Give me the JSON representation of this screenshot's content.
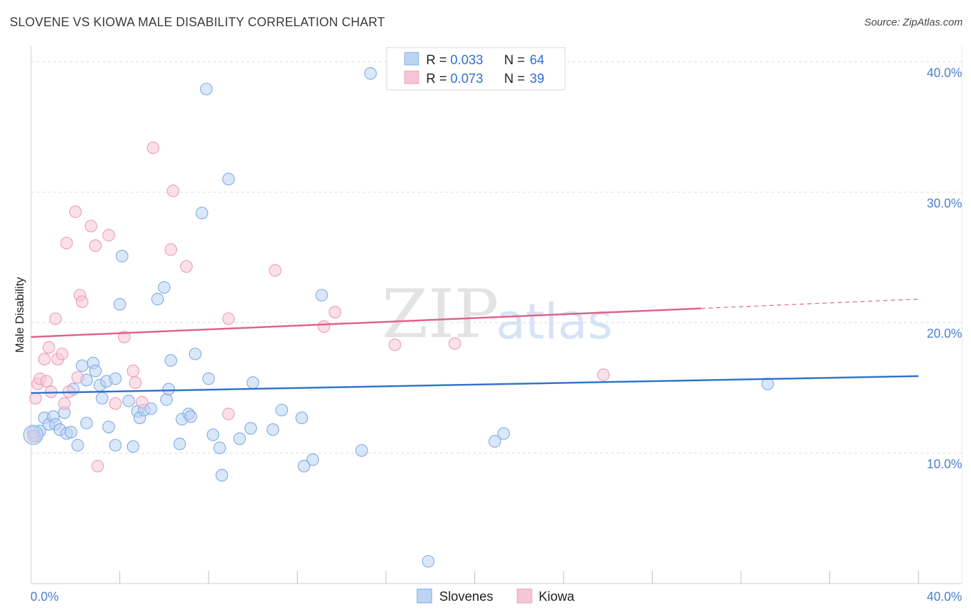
{
  "chart_data": {
    "type": "scatter",
    "title": "SLOVENE VS KIOWA MALE DISABILITY CORRELATION CHART",
    "source": "Source: ZipAtlas.com",
    "xlabel": "",
    "ylabel": "Male Disability",
    "xlim": [
      0,
      40
    ],
    "ylim": [
      0,
      40.6
    ],
    "x_tick_labels": [
      "0.0%",
      "40.0%"
    ],
    "y_ticks": [
      10,
      20,
      30,
      40
    ],
    "y_tick_labels": [
      "10.0%",
      "20.0%",
      "30.0%",
      "40.0%"
    ],
    "grid": true,
    "watermark": {
      "bold": "ZIP",
      "light": "atlas"
    },
    "legend": {
      "placement": "top-center",
      "entries": [
        {
          "series": "Slovenes",
          "r_label": "R =",
          "r_value": "0.033",
          "n_label": "N =",
          "n_value": "64"
        },
        {
          "series": "Kiowa",
          "r_label": "R =",
          "r_value": "0.073",
          "n_label": "N =",
          "n_value": "39"
        }
      ]
    },
    "series": [
      {
        "name": "Slovenes",
        "color": "#7aaae6",
        "fill": "#bcd4f3",
        "line_color": "#2f73c9",
        "trend": {
          "x0": 0,
          "y0": 14.6,
          "x1": 40,
          "y1": 15.9,
          "solid_until": 40
        },
        "points": [
          [
            0.2,
            11.3
          ],
          [
            0.4,
            11.7
          ],
          [
            0.6,
            12.7
          ],
          [
            0.8,
            12.2
          ],
          [
            1.0,
            12.8
          ],
          [
            1.1,
            12.2
          ],
          [
            1.3,
            11.8
          ],
          [
            1.5,
            13.1
          ],
          [
            1.6,
            11.5
          ],
          [
            1.8,
            11.6
          ],
          [
            1.9,
            14.9
          ],
          [
            2.1,
            10.6
          ],
          [
            2.3,
            16.7
          ],
          [
            2.5,
            15.6
          ],
          [
            2.5,
            12.3
          ],
          [
            2.8,
            16.9
          ],
          [
            2.9,
            16.3
          ],
          [
            3.1,
            15.2
          ],
          [
            3.2,
            14.2
          ],
          [
            3.4,
            15.5
          ],
          [
            3.5,
            12.0
          ],
          [
            3.8,
            10.6
          ],
          [
            3.8,
            15.7
          ],
          [
            4.0,
            21.4
          ],
          [
            4.1,
            25.1
          ],
          [
            4.4,
            14.0
          ],
          [
            4.6,
            10.5
          ],
          [
            4.8,
            13.2
          ],
          [
            4.9,
            12.7
          ],
          [
            5.1,
            13.3
          ],
          [
            5.4,
            13.4
          ],
          [
            5.7,
            21.8
          ],
          [
            6.0,
            22.7
          ],
          [
            6.1,
            14.1
          ],
          [
            6.2,
            14.9
          ],
          [
            6.3,
            17.1
          ],
          [
            6.7,
            10.7
          ],
          [
            6.8,
            12.6
          ],
          [
            7.1,
            13.0
          ],
          [
            7.2,
            12.8
          ],
          [
            7.4,
            17.6
          ],
          [
            7.7,
            28.4
          ],
          [
            7.9,
            37.9
          ],
          [
            8.0,
            15.7
          ],
          [
            8.2,
            11.4
          ],
          [
            8.5,
            10.4
          ],
          [
            8.6,
            8.3
          ],
          [
            8.9,
            31.0
          ],
          [
            9.4,
            11.1
          ],
          [
            9.9,
            11.9
          ],
          [
            10.0,
            15.4
          ],
          [
            10.9,
            11.8
          ],
          [
            11.3,
            13.3
          ],
          [
            12.2,
            12.7
          ],
          [
            12.3,
            9.0
          ],
          [
            12.7,
            9.5
          ],
          [
            13.1,
            22.1
          ],
          [
            14.9,
            10.2
          ],
          [
            15.3,
            39.1
          ],
          [
            17.9,
            1.7
          ],
          [
            20.9,
            10.9
          ],
          [
            21.3,
            11.5
          ],
          [
            33.2,
            15.3
          ],
          [
            0.1,
            11.6
          ]
        ]
      },
      {
        "name": "Kiowa",
        "color": "#ee9ab8",
        "fill": "#f6c6d6",
        "line_color": "#e0608a",
        "trend": {
          "x0": 0,
          "y0": 18.9,
          "x1": 40,
          "y1": 21.8,
          "solid_until": 30.2
        },
        "points": [
          [
            0.1,
            11.3
          ],
          [
            0.2,
            14.2
          ],
          [
            0.3,
            15.3
          ],
          [
            0.4,
            15.7
          ],
          [
            0.6,
            17.2
          ],
          [
            0.7,
            15.5
          ],
          [
            0.8,
            18.1
          ],
          [
            0.9,
            14.7
          ],
          [
            1.1,
            20.3
          ],
          [
            1.2,
            17.2
          ],
          [
            1.4,
            17.6
          ],
          [
            1.5,
            13.8
          ],
          [
            1.6,
            26.1
          ],
          [
            1.7,
            14.7
          ],
          [
            2.0,
            28.5
          ],
          [
            2.1,
            15.8
          ],
          [
            2.2,
            22.1
          ],
          [
            2.3,
            21.6
          ],
          [
            2.7,
            27.4
          ],
          [
            2.9,
            25.9
          ],
          [
            3.0,
            9.0
          ],
          [
            3.5,
            26.7
          ],
          [
            3.8,
            13.8
          ],
          [
            4.2,
            18.9
          ],
          [
            4.6,
            16.3
          ],
          [
            4.7,
            15.4
          ],
          [
            5.0,
            13.9
          ],
          [
            5.5,
            33.4
          ],
          [
            6.3,
            25.6
          ],
          [
            6.4,
            30.1
          ],
          [
            7.0,
            24.3
          ],
          [
            8.9,
            13.0
          ],
          [
            8.9,
            20.3
          ],
          [
            11.0,
            24.0
          ],
          [
            13.2,
            19.7
          ],
          [
            13.7,
            20.8
          ],
          [
            16.4,
            18.3
          ],
          [
            19.1,
            18.4
          ],
          [
            25.8,
            16.0
          ]
        ]
      }
    ]
  }
}
